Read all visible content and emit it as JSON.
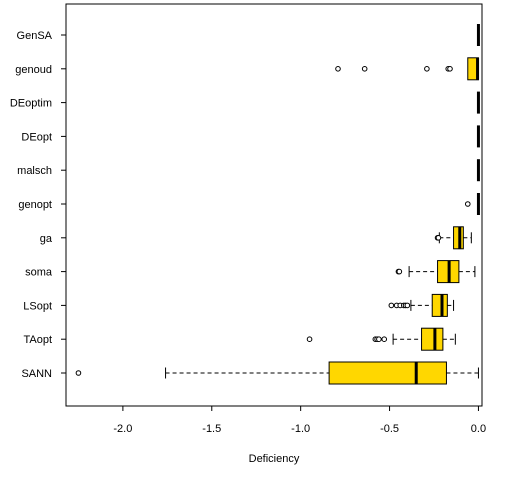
{
  "chart_data": {
    "type": "boxplot",
    "orientation": "horizontal",
    "title": "",
    "xlabel": "Deficiency",
    "ylabel": "",
    "xlim": [
      -2.32,
      0.02
    ],
    "xticks": [
      -2.0,
      -1.5,
      -1.0,
      -0.5,
      0.0
    ],
    "xtick_labels": [
      "-2.0",
      "-1.5",
      "-1.0",
      "-0.5",
      "0.0"
    ],
    "grid": false,
    "box_color": "#FFD700",
    "series": [
      {
        "name": "GenSA",
        "whisker_low": 0.0,
        "q1": 0.0,
        "median": 0.0,
        "q3": 0.0,
        "whisker_high": 0.0,
        "outliers": []
      },
      {
        "name": "genoud",
        "whisker_low": -0.06,
        "q1": -0.06,
        "median": -0.005,
        "q3": 0.0,
        "whisker_high": 0.0,
        "outliers": [
          -0.79,
          -0.64,
          -0.29,
          -0.17,
          -0.16
        ]
      },
      {
        "name": "DEoptim",
        "whisker_low": 0.0,
        "q1": 0.0,
        "median": 0.0,
        "q3": 0.0,
        "whisker_high": 0.0,
        "outliers": []
      },
      {
        "name": "DEopt",
        "whisker_low": 0.0,
        "q1": 0.0,
        "median": 0.0,
        "q3": 0.0,
        "whisker_high": 0.0,
        "outliers": []
      },
      {
        "name": "malsch",
        "whisker_low": 0.0,
        "q1": 0.0,
        "median": 0.0,
        "q3": 0.0,
        "whisker_high": 0.0,
        "outliers": []
      },
      {
        "name": "genopt",
        "whisker_low": 0.0,
        "q1": 0.0,
        "median": 0.0,
        "q3": 0.0,
        "whisker_high": 0.0,
        "outliers": [
          -0.06
        ]
      },
      {
        "name": "ga",
        "whisker_low": -0.22,
        "q1": -0.14,
        "median": -0.105,
        "q3": -0.085,
        "whisker_high": -0.04,
        "outliers": [
          -0.23,
          -0.225
        ]
      },
      {
        "name": "soma",
        "whisker_low": -0.39,
        "q1": -0.23,
        "median": -0.165,
        "q3": -0.11,
        "whisker_high": -0.02,
        "outliers": [
          -0.45,
          -0.445
        ]
      },
      {
        "name": "LSopt",
        "whisker_low": -0.38,
        "q1": -0.26,
        "median": -0.205,
        "q3": -0.175,
        "whisker_high": -0.14,
        "outliers": [
          -0.49,
          -0.46,
          -0.44,
          -0.42,
          -0.41,
          -0.4
        ]
      },
      {
        "name": "TAopt",
        "whisker_low": -0.48,
        "q1": -0.32,
        "median": -0.245,
        "q3": -0.2,
        "whisker_high": -0.13,
        "outliers": [
          -0.95,
          -0.58,
          -0.57,
          -0.56,
          -0.53
        ]
      },
      {
        "name": "SANN",
        "whisker_low": -1.76,
        "q1": -0.84,
        "median": -0.35,
        "q3": -0.18,
        "whisker_high": 0.0,
        "outliers": [
          -2.25
        ]
      }
    ]
  }
}
